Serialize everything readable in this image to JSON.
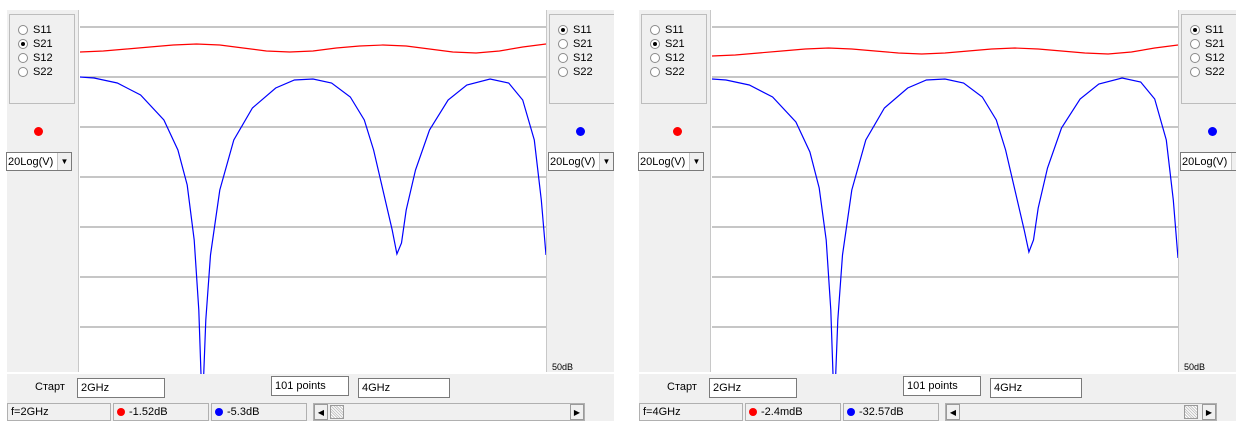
{
  "windows": [
    {
      "left_panel": {
        "radios": [
          {
            "label": "S11",
            "checked": false
          },
          {
            "label": "S21",
            "checked": true
          },
          {
            "label": "S12",
            "checked": false
          },
          {
            "label": "S22",
            "checked": false
          }
        ],
        "marker_color": "#ff0000",
        "select_value": "20Log(V)"
      },
      "right_panel": {
        "radios": [
          {
            "label": "S11",
            "checked": true
          },
          {
            "label": "S21",
            "checked": false
          },
          {
            "label": "S12",
            "checked": false
          },
          {
            "label": "S22",
            "checked": false
          }
        ],
        "marker_color": "#0000ff",
        "select_value": "20Log(V)",
        "scale_label": "50dB"
      },
      "bottom": {
        "start_label": "Старт",
        "start_value": "2GHz",
        "points_value": "101 points",
        "stop_value": "4GHz",
        "freq": "f=2GHz",
        "red_readout": "-1.52dB",
        "blue_readout": "-5.3dB"
      },
      "traces": {
        "red": [
          [
            0.0,
            52
          ],
          [
            0.05,
            51
          ],
          [
            0.1,
            49
          ],
          [
            0.15,
            47
          ],
          [
            0.2,
            45
          ],
          [
            0.25,
            44
          ],
          [
            0.3,
            45
          ],
          [
            0.35,
            48
          ],
          [
            0.4,
            51
          ],
          [
            0.45,
            52
          ],
          [
            0.5,
            51
          ],
          [
            0.55,
            48
          ],
          [
            0.6,
            46
          ],
          [
            0.65,
            45
          ],
          [
            0.7,
            46
          ],
          [
            0.75,
            49
          ],
          [
            0.8,
            52
          ],
          [
            0.85,
            53
          ],
          [
            0.9,
            51
          ],
          [
            0.95,
            47
          ],
          [
            1.0,
            44
          ]
        ],
        "blue": [
          [
            0.0,
            77
          ],
          [
            0.03,
            78
          ],
          [
            0.08,
            83
          ],
          [
            0.13,
            95
          ],
          [
            0.18,
            120
          ],
          [
            0.21,
            150
          ],
          [
            0.23,
            185
          ],
          [
            0.245,
            240
          ],
          [
            0.255,
            310
          ],
          [
            0.26,
            380
          ],
          [
            0.265,
            380
          ],
          [
            0.27,
            320
          ],
          [
            0.28,
            255
          ],
          [
            0.3,
            190
          ],
          [
            0.33,
            140
          ],
          [
            0.37,
            108
          ],
          [
            0.42,
            88
          ],
          [
            0.46,
            80
          ],
          [
            0.5,
            79
          ],
          [
            0.54,
            83
          ],
          [
            0.58,
            97
          ],
          [
            0.61,
            120
          ],
          [
            0.63,
            150
          ],
          [
            0.65,
            190
          ],
          [
            0.67,
            230
          ],
          [
            0.68,
            254
          ],
          [
            0.69,
            243
          ],
          [
            0.7,
            210
          ],
          [
            0.72,
            170
          ],
          [
            0.75,
            130
          ],
          [
            0.79,
            100
          ],
          [
            0.83,
            85
          ],
          [
            0.88,
            79
          ],
          [
            0.92,
            83
          ],
          [
            0.95,
            100
          ],
          [
            0.975,
            140
          ],
          [
            0.99,
            200
          ],
          [
            1.0,
            255
          ]
        ]
      }
    },
    {
      "left_panel": {
        "radios": [
          {
            "label": "S11",
            "checked": false
          },
          {
            "label": "S21",
            "checked": true
          },
          {
            "label": "S12",
            "checked": false
          },
          {
            "label": "S22",
            "checked": false
          }
        ],
        "marker_color": "#ff0000",
        "select_value": "20Log(V)"
      },
      "right_panel": {
        "radios": [
          {
            "label": "S11",
            "checked": true
          },
          {
            "label": "S21",
            "checked": false
          },
          {
            "label": "S12",
            "checked": false
          },
          {
            "label": "S22",
            "checked": false
          }
        ],
        "marker_color": "#0000ff",
        "select_value": "20Log(V)",
        "scale_label": "50dB"
      },
      "bottom": {
        "start_label": "Старт",
        "start_value": "2GHz",
        "points_value": "101 points",
        "stop_value": "4GHz",
        "freq": "f=4GHz",
        "red_readout": "-2.4mdB",
        "blue_readout": "-32.57dB"
      },
      "traces": {
        "red": [
          [
            0.0,
            56
          ],
          [
            0.05,
            55
          ],
          [
            0.1,
            53
          ],
          [
            0.15,
            51
          ],
          [
            0.2,
            49
          ],
          [
            0.25,
            48
          ],
          [
            0.3,
            49
          ],
          [
            0.35,
            51
          ],
          [
            0.4,
            53
          ],
          [
            0.45,
            54
          ],
          [
            0.5,
            53
          ],
          [
            0.55,
            51
          ],
          [
            0.6,
            49
          ],
          [
            0.65,
            48
          ],
          [
            0.7,
            49
          ],
          [
            0.75,
            51
          ],
          [
            0.8,
            53
          ],
          [
            0.85,
            54
          ],
          [
            0.9,
            52
          ],
          [
            0.95,
            48
          ],
          [
            1.0,
            45
          ]
        ],
        "blue": [
          [
            0.0,
            79
          ],
          [
            0.03,
            80
          ],
          [
            0.08,
            85
          ],
          [
            0.13,
            97
          ],
          [
            0.18,
            122
          ],
          [
            0.21,
            152
          ],
          [
            0.23,
            188
          ],
          [
            0.245,
            240
          ],
          [
            0.255,
            310
          ],
          [
            0.26,
            380
          ],
          [
            0.265,
            380
          ],
          [
            0.27,
            320
          ],
          [
            0.28,
            255
          ],
          [
            0.3,
            190
          ],
          [
            0.33,
            140
          ],
          [
            0.37,
            108
          ],
          [
            0.42,
            88
          ],
          [
            0.46,
            80
          ],
          [
            0.5,
            79
          ],
          [
            0.54,
            83
          ],
          [
            0.58,
            97
          ],
          [
            0.61,
            120
          ],
          [
            0.63,
            150
          ],
          [
            0.65,
            190
          ],
          [
            0.67,
            230
          ],
          [
            0.68,
            252
          ],
          [
            0.69,
            240
          ],
          [
            0.7,
            208
          ],
          [
            0.72,
            168
          ],
          [
            0.75,
            128
          ],
          [
            0.79,
            99
          ],
          [
            0.83,
            84
          ],
          [
            0.88,
            78
          ],
          [
            0.92,
            82
          ],
          [
            0.95,
            99
          ],
          [
            0.975,
            140
          ],
          [
            0.99,
            200
          ],
          [
            1.0,
            258
          ]
        ]
      }
    }
  ]
}
